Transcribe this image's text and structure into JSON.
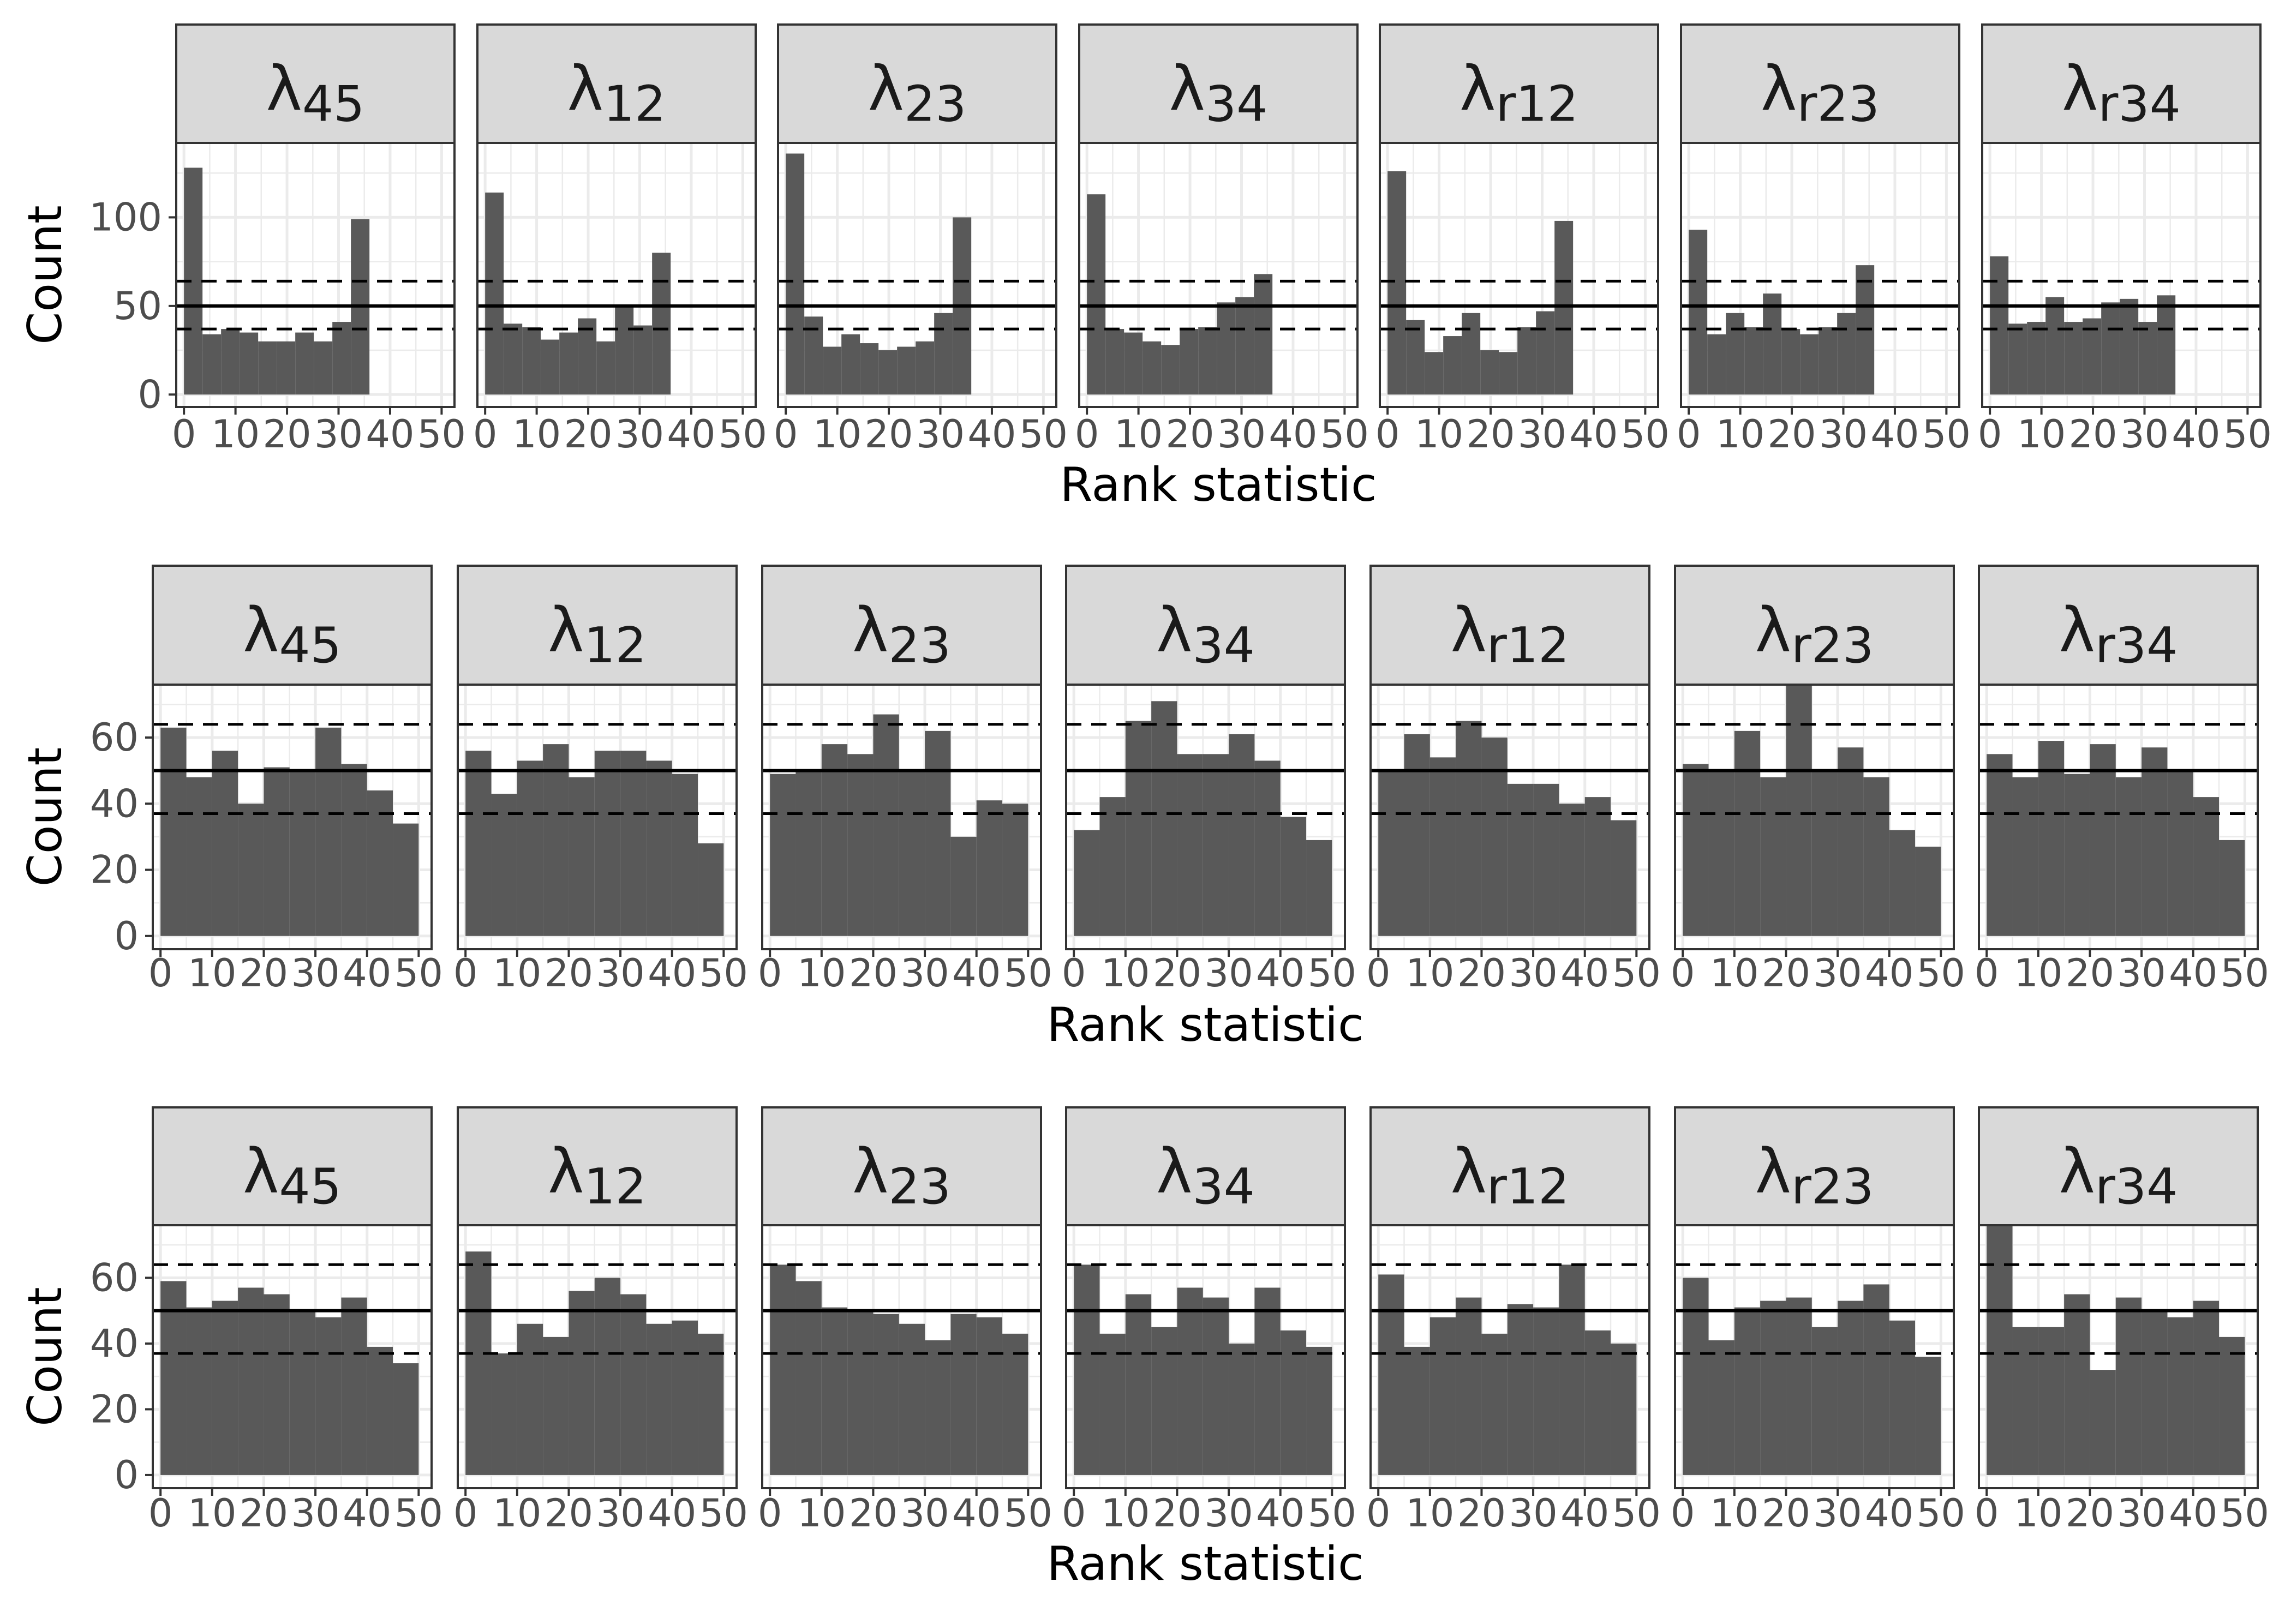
{
  "figure": {
    "bar_color": "#595959",
    "strip_fill": "#d9d9d9",
    "panel_border": "#333333",
    "grid_color": "#ebebeb",
    "reference_line_color": "#000000"
  },
  "chart_data": [
    {
      "type": "bar",
      "row": 1,
      "xlabel": "Rank statistic",
      "ylabel": "Count",
      "xlim": [
        -1.5,
        52.5
      ],
      "ylim": [
        -7,
        142
      ],
      "yticks": [
        0,
        50,
        100
      ],
      "xticks": [
        0,
        10,
        20,
        30,
        40,
        50
      ],
      "bin_width": 3.6,
      "reference_lines": {
        "expected": 50,
        "lower": 37,
        "upper": 64
      },
      "panels": [
        {
          "label": {
            "base": "λ",
            "sub": "45"
          },
          "values": [
            128,
            34,
            37,
            35,
            30,
            30,
            35,
            30,
            41,
            99
          ]
        },
        {
          "label": {
            "base": "λ",
            "sub": "12"
          },
          "values": [
            114,
            40,
            38,
            31,
            35,
            43,
            30,
            50,
            39,
            80
          ]
        },
        {
          "label": {
            "base": "λ",
            "sub": "23"
          },
          "values": [
            136,
            44,
            27,
            34,
            29,
            25,
            27,
            30,
            46,
            100
          ]
        },
        {
          "label": {
            "base": "λ",
            "sub": "34"
          },
          "values": [
            113,
            37,
            35,
            30,
            28,
            37,
            38,
            52,
            55,
            68
          ]
        },
        {
          "label": {
            "base": "λ",
            "sub": "r12"
          },
          "values": [
            126,
            42,
            24,
            33,
            46,
            25,
            24,
            38,
            47,
            98
          ]
        },
        {
          "label": {
            "base": "λ",
            "sub": "r23"
          },
          "values": [
            93,
            34,
            46,
            38,
            57,
            37,
            34,
            38,
            46,
            73
          ]
        },
        {
          "label": {
            "base": "λ",
            "sub": "r34"
          },
          "values": [
            78,
            40,
            41,
            55,
            41,
            43,
            52,
            54,
            41,
            56
          ]
        }
      ]
    },
    {
      "type": "bar",
      "row": 2,
      "xlabel": "Rank statistic",
      "ylabel": "Count",
      "xlim": [
        -1.5,
        52.5
      ],
      "ylim": [
        -4,
        76
      ],
      "yticks": [
        0,
        20,
        40,
        60
      ],
      "xticks": [
        0,
        10,
        20,
        30,
        40,
        50
      ],
      "bin_width": 5,
      "reference_lines": {
        "expected": 50,
        "lower": 37,
        "upper": 64
      },
      "panels": [
        {
          "label": {
            "base": "λ",
            "sub": "45"
          },
          "values": [
            63,
            48,
            56,
            40,
            51,
            50,
            63,
            52,
            44,
            34
          ]
        },
        {
          "label": {
            "base": "λ",
            "sub": "12"
          },
          "values": [
            56,
            43,
            53,
            58,
            48,
            56,
            56,
            53,
            49,
            28
          ]
        },
        {
          "label": {
            "base": "λ",
            "sub": "23"
          },
          "values": [
            49,
            50,
            58,
            55,
            67,
            50,
            62,
            30,
            41,
            40
          ]
        },
        {
          "label": {
            "base": "λ",
            "sub": "34"
          },
          "values": [
            32,
            42,
            65,
            71,
            55,
            55,
            61,
            53,
            36,
            29
          ]
        },
        {
          "label": {
            "base": "λ",
            "sub": "r12"
          },
          "values": [
            50,
            61,
            54,
            65,
            60,
            46,
            46,
            40,
            42,
            35
          ]
        },
        {
          "label": {
            "base": "λ",
            "sub": "r23"
          },
          "values": [
            52,
            50,
            62,
            48,
            76,
            50,
            57,
            48,
            32,
            27
          ]
        },
        {
          "label": {
            "base": "λ",
            "sub": "r34"
          },
          "values": [
            55,
            48,
            59,
            49,
            58,
            48,
            57,
            50,
            42,
            29
          ]
        }
      ]
    },
    {
      "type": "bar",
      "row": 3,
      "xlabel": "Rank statistic",
      "ylabel": "Count",
      "xlim": [
        -1.5,
        52.5
      ],
      "ylim": [
        -4,
        76
      ],
      "yticks": [
        0,
        20,
        40,
        60
      ],
      "xticks": [
        0,
        10,
        20,
        30,
        40,
        50
      ],
      "bin_width": 5,
      "reference_lines": {
        "expected": 50,
        "lower": 37,
        "upper": 64
      },
      "panels": [
        {
          "label": {
            "base": "λ",
            "sub": "45"
          },
          "values": [
            59,
            51,
            53,
            57,
            55,
            50,
            48,
            54,
            39,
            34
          ]
        },
        {
          "label": {
            "base": "λ",
            "sub": "12"
          },
          "values": [
            68,
            37,
            46,
            42,
            56,
            60,
            55,
            46,
            47,
            43
          ]
        },
        {
          "label": {
            "base": "λ",
            "sub": "23"
          },
          "values": [
            64,
            59,
            51,
            50,
            49,
            46,
            41,
            49,
            48,
            43
          ]
        },
        {
          "label": {
            "base": "λ",
            "sub": "34"
          },
          "values": [
            64,
            43,
            55,
            45,
            57,
            54,
            40,
            57,
            44,
            39
          ]
        },
        {
          "label": {
            "base": "λ",
            "sub": "r12"
          },
          "values": [
            61,
            39,
            48,
            54,
            43,
            52,
            51,
            64,
            44,
            40
          ]
        },
        {
          "label": {
            "base": "λ",
            "sub": "r23"
          },
          "values": [
            60,
            41,
            51,
            53,
            54,
            45,
            53,
            58,
            47,
            36
          ]
        },
        {
          "label": {
            "base": "λ",
            "sub": "r34"
          },
          "values": [
            76,
            45,
            45,
            55,
            32,
            54,
            50,
            48,
            53,
            42
          ]
        }
      ]
    }
  ]
}
